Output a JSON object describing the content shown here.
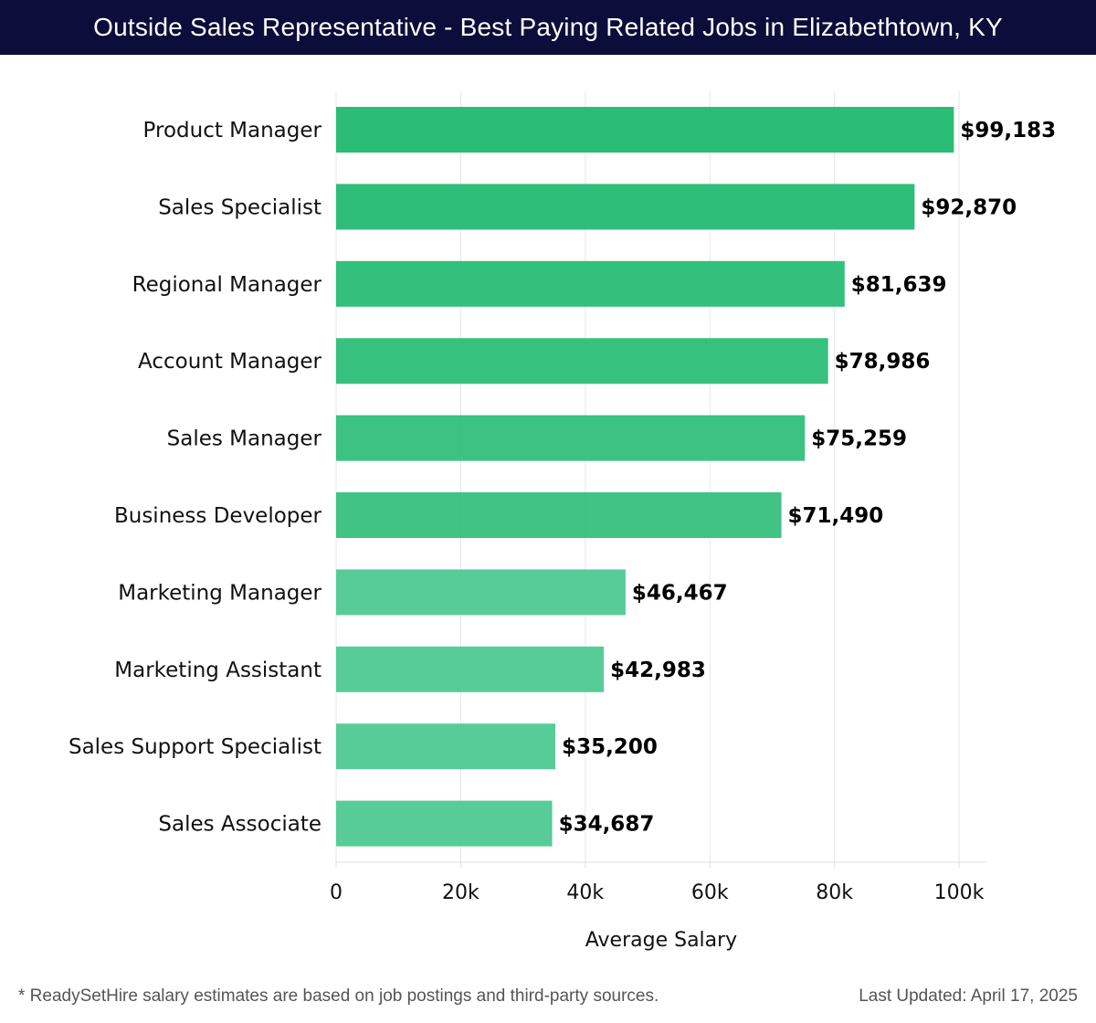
{
  "header": {
    "title": "Outside Sales Representative - Best Paying Related Jobs in Elizabethtown, KY"
  },
  "footer": {
    "note": "* ReadySetHire salary estimates are based on job postings and third-party sources.",
    "updated": "Last Updated: April 17, 2025"
  },
  "colors": {
    "header_bg": "#0c0d3a",
    "bar_dark": "#2bbd77",
    "bar_light": "#57cc98",
    "grid": "#e6e6e6"
  },
  "chart_data": {
    "type": "bar",
    "orientation": "horizontal",
    "title": "Outside Sales Representative - Best Paying Related Jobs in Elizabethtown, KY",
    "xlabel": "Average Salary",
    "ylabel": "",
    "xlim": [
      0,
      100000
    ],
    "grid": true,
    "categories": [
      "Product Manager",
      "Sales Specialist",
      "Regional Manager",
      "Account Manager",
      "Sales Manager",
      "Business Developer",
      "Marketing Manager",
      "Marketing Assistant",
      "Sales Support Specialist",
      "Sales Associate"
    ],
    "values": [
      99183,
      92870,
      81639,
      78986,
      75259,
      71490,
      46467,
      42983,
      35200,
      34687
    ],
    "value_labels": [
      "$99,183",
      "$92,870",
      "$81,639",
      "$78,986",
      "$75,259",
      "$71,490",
      "$46,467",
      "$42,983",
      "$35,200",
      "$34,687"
    ],
    "ticks": [
      0,
      20000,
      40000,
      60000,
      80000,
      100000
    ],
    "tick_labels": [
      "0",
      "20k",
      "40k",
      "60k",
      "80k",
      "100k"
    ]
  }
}
